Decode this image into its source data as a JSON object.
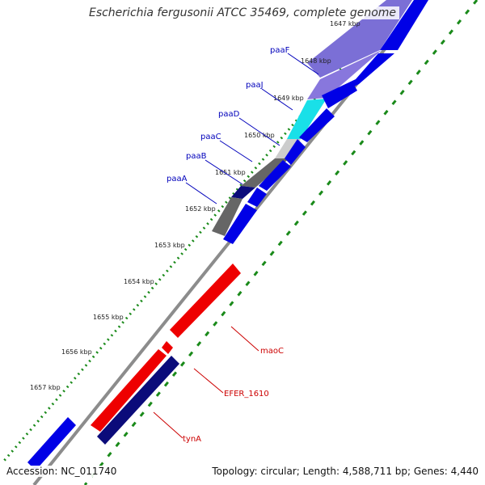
{
  "title": "Escherichia fergusonii ATCC 35469, complete genome",
  "footer": {
    "accession": "Accession: NC_011740",
    "topology": "Topology: circular; Length: 4,588,711 bp; Genes: 4,440"
  },
  "colors": {
    "backbone": "#8c8c8c",
    "forward_cds": "#0000e6",
    "reverse_cds": "#ee0000",
    "dark_cds": "#0b0b7a",
    "tick_green": "#1a8a1a",
    "label_blue": "#0000bb",
    "label_red": "#cc0000",
    "purple": "#7b6fd6",
    "cyan": "#19e0e8",
    "gray_dark": "#666666",
    "gray_light": "#cccccc"
  },
  "ticks": [
    "1647 kbp",
    "1648 kbp",
    "1649 kbp",
    "1650 kbp",
    "1651 kbp",
    "1652 kbp",
    "1653 kbp",
    "1654 kbp",
    "1655 kbp",
    "1656 kbp",
    "1657 kbp"
  ],
  "genes_forward": [
    "paaF",
    "paaJ",
    "paaD",
    "paaC",
    "paaB",
    "paaA"
  ],
  "genes_reverse": [
    "maoC",
    "EFER_1610",
    "tynA"
  ]
}
